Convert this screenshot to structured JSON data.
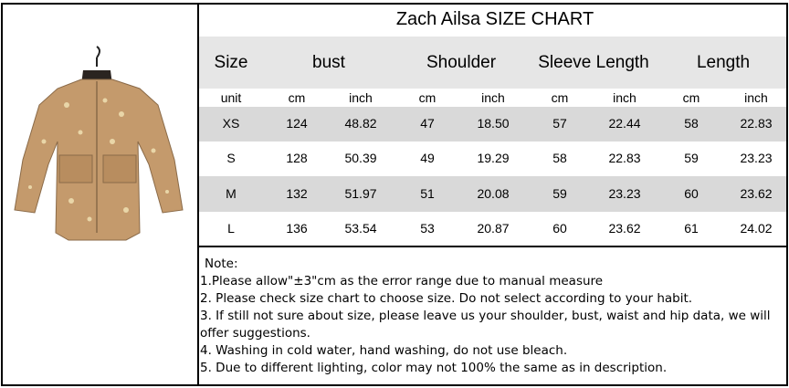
{
  "table": {
    "title": "Zach Ailsa SIZE CHART",
    "header": [
      "Size",
      "bust",
      "Shoulder",
      "Sleeve Length",
      "Length"
    ],
    "units": [
      "unit",
      "cm",
      "inch",
      "cm",
      "inch",
      "cm",
      "inch",
      "cm",
      "inch"
    ],
    "rows": [
      [
        "XS",
        "124",
        "48.82",
        "47",
        "18.50",
        "57",
        "22.44",
        "58",
        "22.83"
      ],
      [
        "S",
        "128",
        "50.39",
        "49",
        "19.29",
        "58",
        "22.83",
        "59",
        "23.23"
      ],
      [
        "M",
        "132",
        "51.97",
        "51",
        "20.08",
        "59",
        "23.23",
        "60",
        "23.62"
      ],
      [
        "L",
        "136",
        "53.54",
        "53",
        "20.87",
        "60",
        "23.62",
        "61",
        "24.02"
      ]
    ]
  },
  "notes": {
    "title": "Note:",
    "lines": [
      "1.Please allow\"±3\"cm as the error range due to manual measure",
      "2. Please check size chart to choose size. Do not select according to your habit.",
      "3. If still not sure about size, please leave us your shoulder, bust, waist and hip data, we will offer suggestions.",
      "4. Washing in cold water, hand washing, do not use bleach.",
      "5. Due to different lighting, color may not 100% the same as in description."
    ]
  }
}
